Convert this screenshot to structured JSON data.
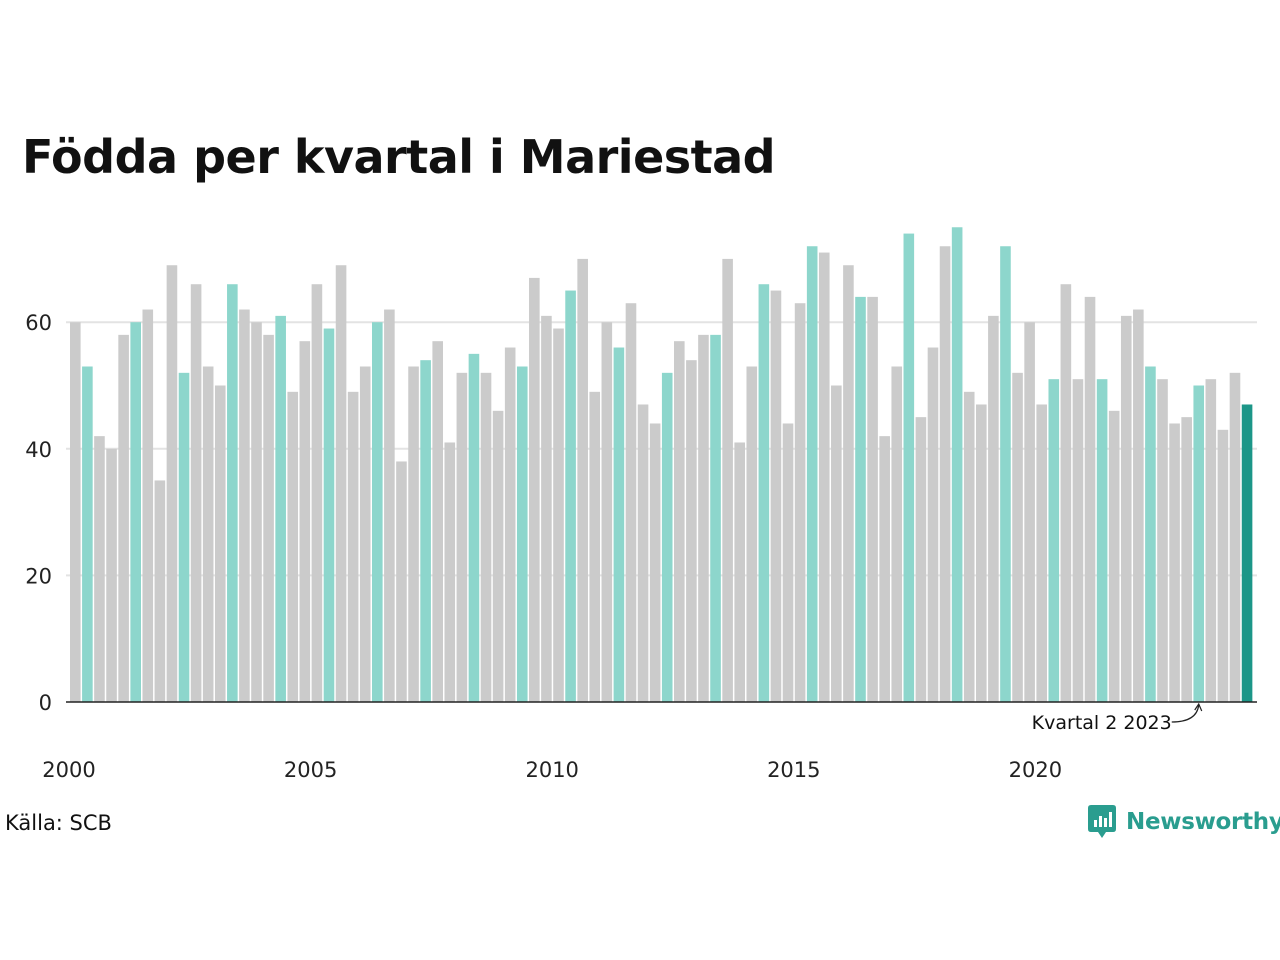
{
  "title": "Födda per kvartal i Mariestad",
  "source": "Källa: SCB",
  "logo": {
    "text": "Newsworthy",
    "icon": "newsworthy-logo-icon"
  },
  "colors": {
    "grey": "#cbcbcb",
    "teal_light": "#8dd6cc",
    "teal_dark": "#1c9688",
    "gridline": "#e3e3e3",
    "axis": "#222222",
    "brand": "#2a9d8f"
  },
  "chart_data": {
    "type": "bar",
    "x_unit": "quarter",
    "start": "2000 Q1",
    "values": [
      60,
      53,
      42,
      40,
      58,
      60,
      62,
      35,
      69,
      52,
      66,
      53,
      50,
      66,
      62,
      60,
      58,
      61,
      49,
      57,
      66,
      59,
      69,
      49,
      53,
      60,
      62,
      38,
      53,
      54,
      57,
      41,
      52,
      55,
      52,
      46,
      56,
      53,
      67,
      61,
      59,
      65,
      70,
      49,
      60,
      56,
      63,
      47,
      44,
      52,
      57,
      54,
      58,
      58,
      70,
      41,
      53,
      66,
      65,
      44,
      63,
      72,
      71,
      50,
      69,
      64,
      64,
      42,
      53,
      74,
      45,
      56,
      72,
      75,
      49,
      47,
      61,
      72,
      52,
      60,
      47,
      51,
      66,
      51,
      64,
      51,
      46,
      61,
      62,
      53,
      51,
      44,
      45,
      50,
      51,
      43,
      52,
      47
    ],
    "highlight_quarter": 2,
    "xticks": [
      "2000",
      "2005",
      "2010",
      "2015",
      "2020"
    ],
    "yticks": [
      "0",
      "20",
      "40",
      "60"
    ],
    "ylim": [
      0,
      75
    ],
    "grid": true,
    "annotation": {
      "text": "Kvartal 2 2023"
    }
  }
}
